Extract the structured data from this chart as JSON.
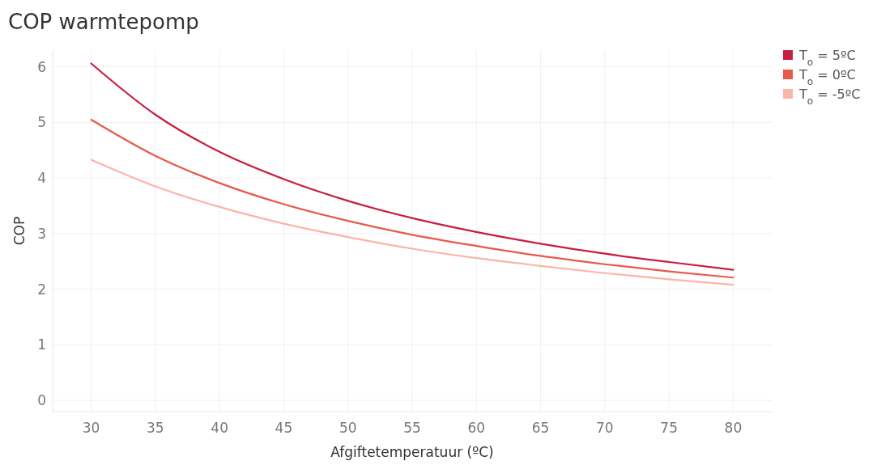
{
  "chart_data": {
    "type": "line",
    "title": "COP warmtepomp",
    "xlabel": "Afgiftetemperatuur (ºC)",
    "ylabel": "COP",
    "x": [
      30,
      35,
      40,
      45,
      50,
      55,
      60,
      65,
      70,
      75,
      80
    ],
    "series": [
      {
        "name": "T$_{o}$ = 5ºC",
        "color": "#c91d42",
        "values": [
          6.06,
          5.14,
          4.47,
          3.98,
          3.59,
          3.28,
          3.03,
          2.82,
          2.64,
          2.49,
          2.35
        ]
      },
      {
        "name": "T$_{o}$ = 0ºC",
        "color": "#e8594a",
        "values": [
          5.05,
          4.4,
          3.91,
          3.53,
          3.23,
          2.98,
          2.78,
          2.6,
          2.45,
          2.32,
          2.21
        ]
      },
      {
        "name": "T$_{o}$ = -5ºC",
        "color": "#fbb4a8",
        "values": [
          4.33,
          3.85,
          3.48,
          3.18,
          2.94,
          2.73,
          2.56,
          2.42,
          2.29,
          2.18,
          2.08
        ]
      }
    ],
    "xlim": [
      27,
      83
    ],
    "ylim": [
      -0.2,
      6.3
    ],
    "xticks": [
      30,
      35,
      40,
      45,
      50,
      55,
      60,
      65,
      70,
      75,
      80
    ],
    "yticks": [
      0,
      1,
      2,
      3,
      4,
      5,
      6
    ],
    "grid": true,
    "legend": "top right",
    "marker": "none",
    "line_style": "solid"
  }
}
